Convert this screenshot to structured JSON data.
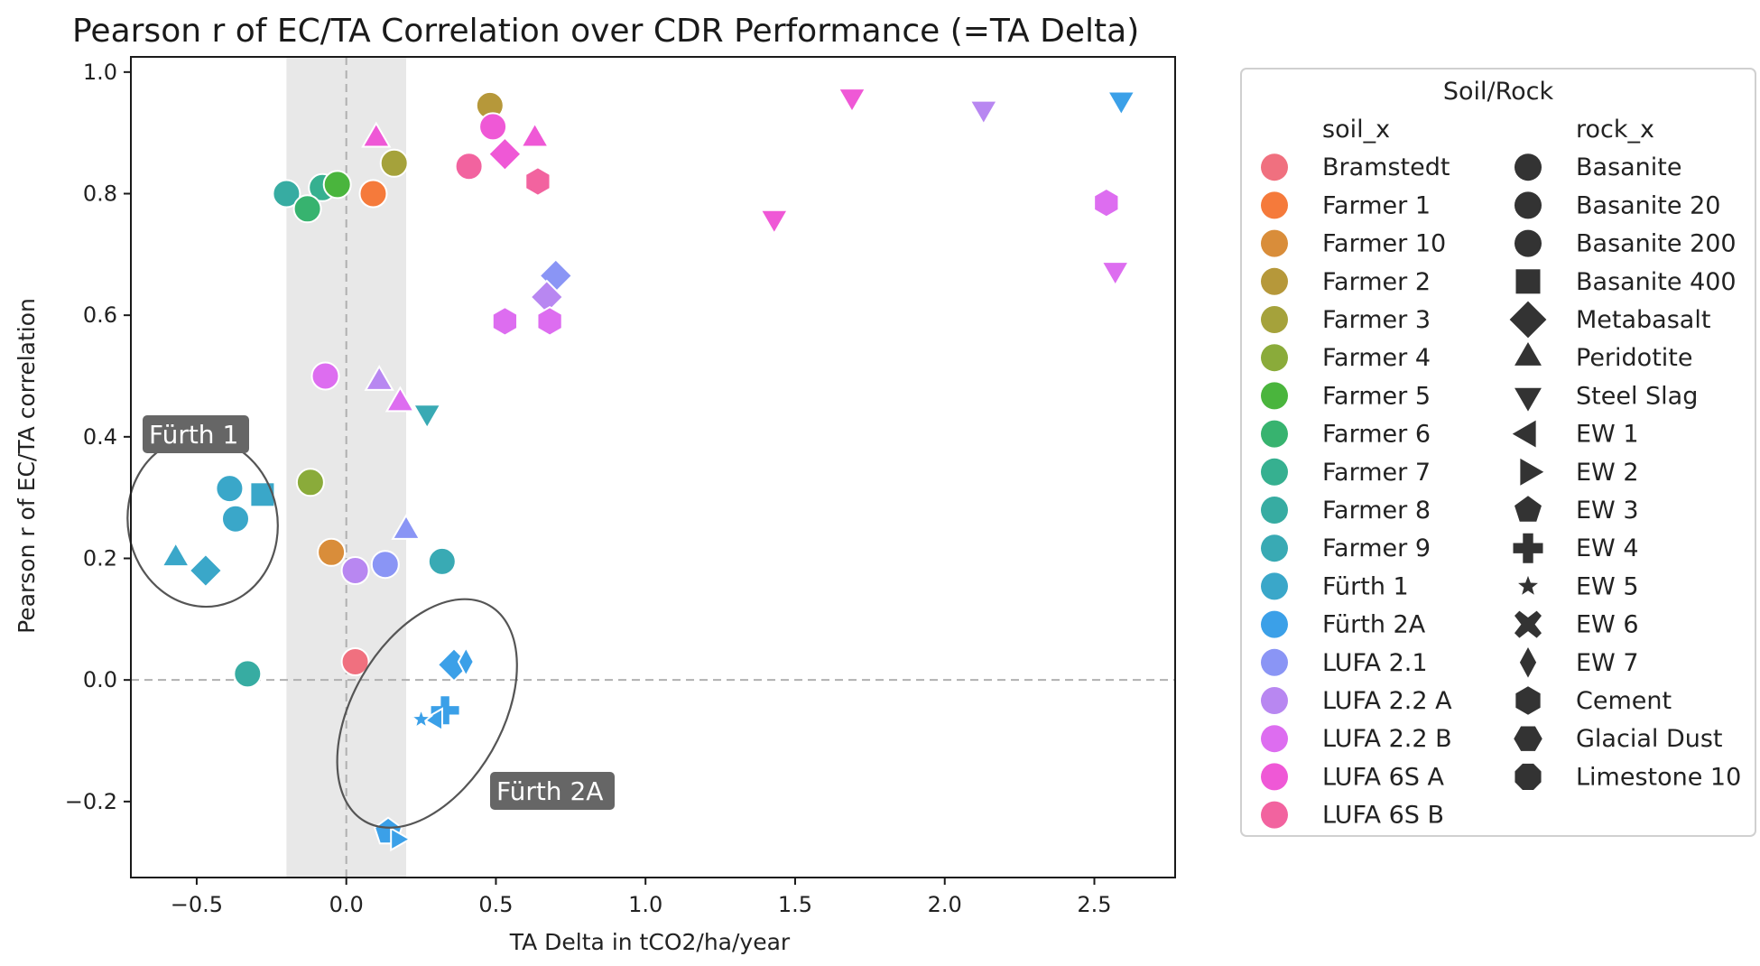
{
  "chart_data": {
    "type": "scatter",
    "title": "Pearson r of EC/TA Correlation over CDR Performance (=TA Delta)",
    "xlabel": "TA Delta in tCO2/ha/year",
    "ylabel": "Pearson r of EC/TA correlation",
    "xlim": [
      -0.72,
      2.77
    ],
    "ylim": [
      -0.325,
      1.025
    ],
    "xticks": [
      -0.5,
      0.0,
      0.5,
      1.0,
      1.5,
      2.0,
      2.5
    ],
    "xtick_labels": [
      "−0.5",
      "0.0",
      "0.5",
      "1.0",
      "1.5",
      "2.0",
      "2.5"
    ],
    "yticks": [
      -0.2,
      0.0,
      0.2,
      0.4,
      0.6,
      0.8,
      1.0
    ],
    "ytick_labels": [
      "−0.2",
      "0.0",
      "0.2",
      "0.4",
      "0.6",
      "0.8",
      "1.0"
    ],
    "grid": false,
    "reference_lines": {
      "x": 0.0,
      "y": 0.0,
      "style": "dashed"
    },
    "shaded_band_x": [
      -0.2,
      0.2
    ],
    "legend": {
      "title": "Soil/Rock",
      "placement": "outside-right",
      "soil_header": "soil_x",
      "rock_header": "rock_x",
      "soils": [
        {
          "name": "Bramstedt",
          "color": "#f0707f"
        },
        {
          "name": "Farmer 1",
          "color": "#f57a3b"
        },
        {
          "name": "Farmer 10",
          "color": "#d98d3a"
        },
        {
          "name": "Farmer 2",
          "color": "#b6983a"
        },
        {
          "name": "Farmer 3",
          "color": "#a5a23b"
        },
        {
          "name": "Farmer 4",
          "color": "#8aab3a"
        },
        {
          "name": "Farmer 5",
          "color": "#4ab53d"
        },
        {
          "name": "Farmer 6",
          "color": "#37b36f"
        },
        {
          "name": "Farmer 7",
          "color": "#36b090"
        },
        {
          "name": "Farmer 8",
          "color": "#37aca2"
        },
        {
          "name": "Farmer 9",
          "color": "#39aab4"
        },
        {
          "name": "Fürth 1",
          "color": "#3aa7c9"
        },
        {
          "name": "Fürth 2A",
          "color": "#3ba0e8"
        },
        {
          "name": "LUFA 2.1",
          "color": "#8a95f5"
        },
        {
          "name": "LUFA 2.2 A",
          "color": "#b887f1"
        },
        {
          "name": "LUFA 2.2 B",
          "color": "#dd6df0"
        },
        {
          "name": "LUFA 6S A",
          "color": "#ef58d6"
        },
        {
          "name": "LUFA 6S B",
          "color": "#f2639f"
        }
      ],
      "rocks": [
        {
          "name": "Basanite",
          "marker": "circle"
        },
        {
          "name": "Basanite 20",
          "marker": "circle"
        },
        {
          "name": "Basanite 200",
          "marker": "circle"
        },
        {
          "name": "Basanite 400",
          "marker": "square"
        },
        {
          "name": "Metabasalt",
          "marker": "diamond"
        },
        {
          "name": "Peridotite",
          "marker": "triangle-up"
        },
        {
          "name": "Steel Slag",
          "marker": "triangle-down"
        },
        {
          "name": "EW 1",
          "marker": "triangle-left"
        },
        {
          "name": "EW 2",
          "marker": "triangle-right"
        },
        {
          "name": "EW 3",
          "marker": "pentagon"
        },
        {
          "name": "EW 4",
          "marker": "plus"
        },
        {
          "name": "EW 5",
          "marker": "star"
        },
        {
          "name": "EW 6",
          "marker": "x"
        },
        {
          "name": "EW 7",
          "marker": "thin-diamond"
        },
        {
          "name": "Cement",
          "marker": "hexagon"
        },
        {
          "name": "Glacial Dust",
          "marker": "hexagon2"
        },
        {
          "name": "Limestone 10",
          "marker": "octagon"
        }
      ]
    },
    "annotations": [
      {
        "text": "Fürth 1",
        "ellipse": {
          "cx": -0.48,
          "cy": 0.26,
          "rx": 0.25,
          "ry": 0.14,
          "rot": -10
        }
      },
      {
        "text": "Fürth 2A",
        "ellipse": {
          "cx": 0.27,
          "cy": -0.055,
          "rx": 0.25,
          "ry": 0.205,
          "rot": 30
        }
      }
    ],
    "points": [
      {
        "x": 0.1,
        "y": 0.89,
        "soil": "LUFA 6S A",
        "rock": "Peridotite"
      },
      {
        "x": 0.63,
        "y": 0.89,
        "soil": "LUFA 6S A",
        "rock": "Peridotite"
      },
      {
        "x": 0.48,
        "y": 0.945,
        "soil": "Farmer 2",
        "rock": "Basanite"
      },
      {
        "x": 0.49,
        "y": 0.91,
        "soil": "LUFA 6S A",
        "rock": "Basanite"
      },
      {
        "x": 0.16,
        "y": 0.85,
        "soil": "Farmer 3",
        "rock": "Basanite"
      },
      {
        "x": 0.41,
        "y": 0.845,
        "soil": "LUFA 6S B",
        "rock": "Basanite"
      },
      {
        "x": 0.53,
        "y": 0.865,
        "soil": "LUFA 6S A",
        "rock": "Metabasalt"
      },
      {
        "x": 0.64,
        "y": 0.82,
        "soil": "LUFA 6S B",
        "rock": "Cement"
      },
      {
        "x": -0.2,
        "y": 0.8,
        "soil": "Farmer 8",
        "rock": "Basanite"
      },
      {
        "x": -0.08,
        "y": 0.81,
        "soil": "Farmer 7",
        "rock": "Basanite"
      },
      {
        "x": -0.03,
        "y": 0.815,
        "soil": "Farmer 5",
        "rock": "Basanite"
      },
      {
        "x": -0.13,
        "y": 0.775,
        "soil": "Farmer 6",
        "rock": "Basanite"
      },
      {
        "x": 0.09,
        "y": 0.8,
        "soil": "Farmer 1",
        "rock": "Basanite"
      },
      {
        "x": 1.69,
        "y": 0.96,
        "soil": "LUFA 6S A",
        "rock": "Steel Slag"
      },
      {
        "x": 2.13,
        "y": 0.94,
        "soil": "LUFA 2.2 A",
        "rock": "Steel Slag"
      },
      {
        "x": 2.59,
        "y": 0.955,
        "soil": "Fürth 2A",
        "rock": "Steel Slag"
      },
      {
        "x": 1.43,
        "y": 0.76,
        "soil": "LUFA 6S A",
        "rock": "Steel Slag"
      },
      {
        "x": 2.54,
        "y": 0.785,
        "soil": "LUFA 2.2 B",
        "rock": "Cement"
      },
      {
        "x": 2.57,
        "y": 0.675,
        "soil": "LUFA 2.2 B",
        "rock": "Steel Slag"
      },
      {
        "x": 0.7,
        "y": 0.665,
        "soil": "LUFA 2.1",
        "rock": "Metabasalt"
      },
      {
        "x": 0.67,
        "y": 0.63,
        "soil": "LUFA 2.2 A",
        "rock": "Metabasalt"
      },
      {
        "x": 0.53,
        "y": 0.59,
        "soil": "LUFA 2.2 B",
        "rock": "Cement"
      },
      {
        "x": 0.68,
        "y": 0.59,
        "soil": "LUFA 2.2 B",
        "rock": "Cement"
      },
      {
        "x": -0.07,
        "y": 0.5,
        "soil": "LUFA 2.2 B",
        "rock": "Basanite"
      },
      {
        "x": 0.11,
        "y": 0.49,
        "soil": "LUFA 2.2 A",
        "rock": "Peridotite"
      },
      {
        "x": 0.18,
        "y": 0.455,
        "soil": "LUFA 2.2 B",
        "rock": "Peridotite"
      },
      {
        "x": 0.27,
        "y": 0.44,
        "soil": "Farmer 9",
        "rock": "Steel Slag"
      },
      {
        "x": -0.39,
        "y": 0.315,
        "soil": "Fürth 1",
        "rock": "Basanite"
      },
      {
        "x": -0.28,
        "y": 0.305,
        "soil": "Fürth 1",
        "rock": "Basanite 400"
      },
      {
        "x": -0.37,
        "y": 0.265,
        "soil": "Fürth 1",
        "rock": "Basanite"
      },
      {
        "x": -0.12,
        "y": 0.325,
        "soil": "Farmer 4",
        "rock": "Basanite"
      },
      {
        "x": -0.57,
        "y": 0.2,
        "soil": "Fürth 1",
        "rock": "Peridotite"
      },
      {
        "x": -0.47,
        "y": 0.18,
        "soil": "Fürth 1",
        "rock": "Metabasalt"
      },
      {
        "x": -0.05,
        "y": 0.21,
        "soil": "Farmer 10",
        "rock": "Basanite"
      },
      {
        "x": 0.2,
        "y": 0.245,
        "soil": "LUFA 2.1",
        "rock": "Peridotite"
      },
      {
        "x": 0.03,
        "y": 0.18,
        "soil": "LUFA 2.2 A",
        "rock": "Basanite"
      },
      {
        "x": 0.13,
        "y": 0.19,
        "soil": "LUFA 2.1",
        "rock": "Basanite"
      },
      {
        "x": 0.32,
        "y": 0.195,
        "soil": "Farmer 9",
        "rock": "Basanite"
      },
      {
        "x": -0.33,
        "y": 0.01,
        "soil": "Farmer 8",
        "rock": "Basanite"
      },
      {
        "x": 0.03,
        "y": 0.03,
        "soil": "Bramstedt",
        "rock": "Basanite"
      },
      {
        "x": 0.36,
        "y": 0.025,
        "soil": "Fürth 2A",
        "rock": "Metabasalt"
      },
      {
        "x": 0.4,
        "y": 0.03,
        "soil": "Fürth 2A",
        "rock": "EW 7"
      },
      {
        "x": 0.33,
        "y": -0.05,
        "soil": "Fürth 2A",
        "rock": "EW 4"
      },
      {
        "x": 0.3,
        "y": -0.065,
        "soil": "Fürth 2A",
        "rock": "EW 1"
      },
      {
        "x": 0.25,
        "y": -0.065,
        "soil": "Fürth 2A",
        "rock": "EW 5"
      },
      {
        "x": 0.14,
        "y": -0.25,
        "soil": "Fürth 2A",
        "rock": "EW 3"
      },
      {
        "x": 0.17,
        "y": -0.262,
        "soil": "Fürth 2A",
        "rock": "EW 2"
      }
    ]
  }
}
